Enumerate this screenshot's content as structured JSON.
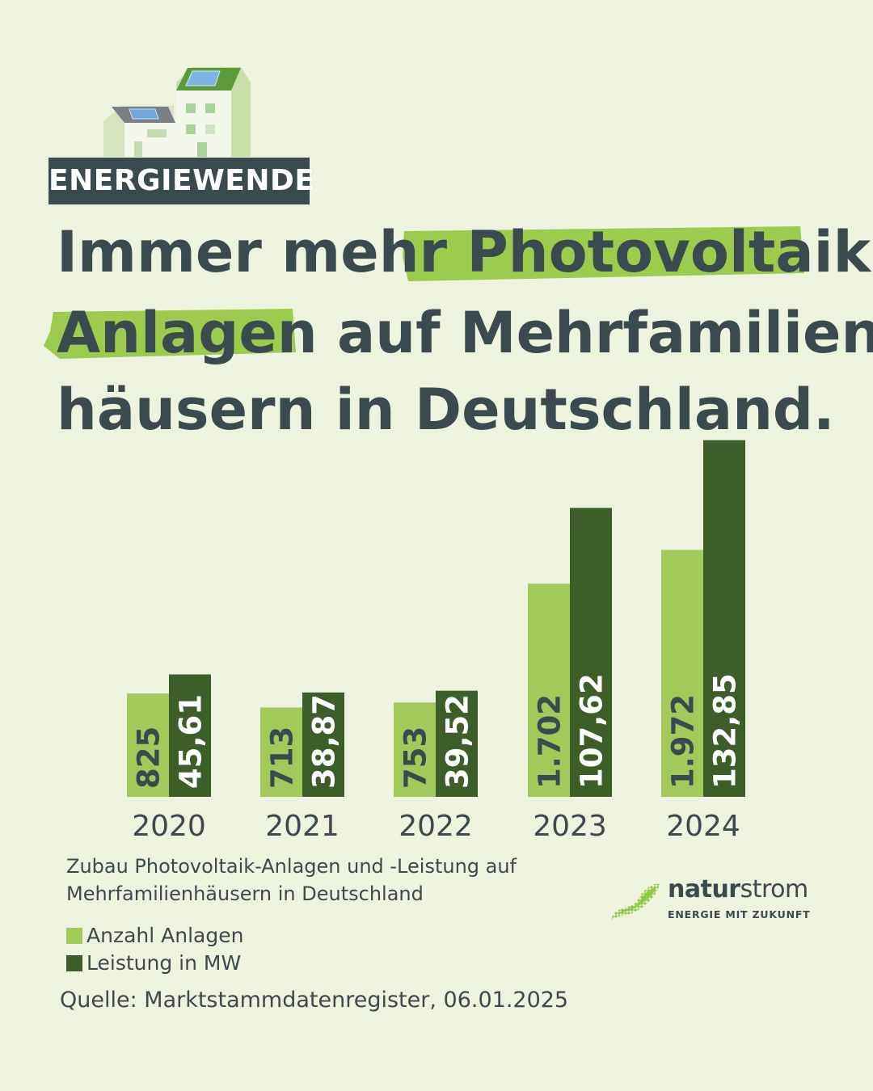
{
  "tag": "ENERGIEWENDE",
  "headline": {
    "line1": {
      "pre": "Immer mehr ",
      "highlight": "Photovoltaik-"
    },
    "line2": {
      "highlight": "Anlagen",
      "post": " auf Mehrfamilien-"
    },
    "line3": "häusern in Deutschland."
  },
  "colors": {
    "background": "#eef3e0",
    "text": "#3a4a4e",
    "light_green": "#a3c95a",
    "dark_green": "#3d5e28",
    "highlight": "#9ccb4e"
  },
  "chart_data": {
    "type": "bar",
    "categories": [
      "2020",
      "2021",
      "2022",
      "2023",
      "2024"
    ],
    "series": [
      {
        "name": "Anzahl Anlagen",
        "values": [
          825,
          713,
          753,
          1702,
          1972
        ],
        "labels": [
          "825",
          "713",
          "753",
          "1.702",
          "1.972"
        ],
        "color": "#a3c95a"
      },
      {
        "name": "Leistung in MW",
        "values": [
          45.61,
          38.87,
          39.52,
          107.62,
          132.85
        ],
        "labels": [
          "45,61",
          "38,87",
          "39,52",
          "107,62",
          "132,85"
        ],
        "color": "#3d5e28"
      }
    ],
    "caption": [
      "Zubau Photovoltaik-Anlagen und -Leistung auf",
      "Mehrfamilienhäusern in Deutschland"
    ],
    "legend_placement": "bottom-left",
    "grid": false
  },
  "source": "Quelle: Marktstammdatenregister, 06.01.2025",
  "logo": {
    "name_regular": "natur",
    "name_bold": "strom",
    "tagline": "ENERGIE MIT ZUKUNFT"
  }
}
